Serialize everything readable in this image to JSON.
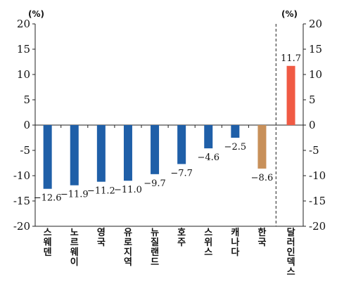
{
  "chart_data": {
    "type": "bar",
    "title": "",
    "y_unit_left": "(%)",
    "y_unit_right": "(%)",
    "ylim": [
      -20,
      20
    ],
    "yticks": [
      20,
      15,
      10,
      5,
      0,
      -5,
      -10,
      -15,
      -20
    ],
    "grid": false,
    "categories": [
      "스웨덴",
      "노르웨이",
      "영국",
      "유로지역",
      "뉴질랜드",
      "호주",
      "스위스",
      "캐나다",
      "한국",
      "달러인덱스"
    ],
    "values": [
      -12.6,
      -11.9,
      -11.2,
      -11.0,
      -9.7,
      -7.7,
      -4.6,
      -2.5,
      -8.6,
      11.7
    ],
    "value_labels": [
      "-12.6",
      "-11.9",
      "-11.2",
      "-11.0",
      "-9.7",
      "-7.7",
      "-4.6",
      "-2.5",
      "-8.6",
      "11.7"
    ],
    "colors": [
      "#1f5fa8",
      "#1f5fa8",
      "#1f5fa8",
      "#1f5fa8",
      "#1f5fa8",
      "#1f5fa8",
      "#1f5fa8",
      "#1f5fa8",
      "#c8905a",
      "#f05a44"
    ],
    "separator_before_index": 9
  }
}
